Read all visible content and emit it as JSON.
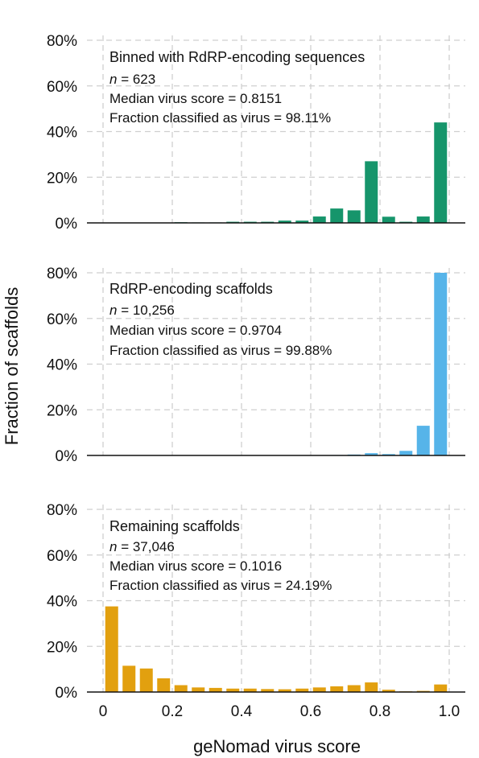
{
  "y_axis_label": "Fraction of scaffolds",
  "x_axis_label": "geNomad virus score",
  "x_tick_labels": [
    "0",
    "0.2",
    "0.4",
    "0.6",
    "0.8",
    "1.0"
  ],
  "y_tick_labels": [
    "0%",
    "20%",
    "40%",
    "60%",
    "80%"
  ],
  "colors": {
    "panel_1": "#16956b",
    "panel_2": "#56b4e9",
    "panel_3": "#e2a00f",
    "grid": "#cfcfcf",
    "axis": "#111111"
  },
  "panels": [
    {
      "title": "Binned with RdRP-encoding sequences",
      "n_prefix": "n",
      "n_value": " = 623",
      "median_text": "Median virus score = 0.8151",
      "fraction_text": "Fraction classified as virus = 98.11%"
    },
    {
      "title": "RdRP-encoding scaffolds",
      "n_prefix": "n",
      "n_value": " = 10,256",
      "median_text": "Median virus score = 0.9704",
      "fraction_text": "Fraction classified as virus = 99.88%"
    },
    {
      "title": "Remaining scaffolds",
      "n_prefix": "n",
      "n_value": " = 37,046",
      "median_text": "Median virus score = 0.1016",
      "fraction_text": "Fraction classified as virus = 24.19%"
    }
  ],
  "chart_data": [
    {
      "type": "bar",
      "title": "Binned with RdRP-encoding sequences",
      "xlabel": "geNomad virus score",
      "ylabel": "Fraction of scaffolds",
      "x": [
        0.025,
        0.075,
        0.125,
        0.175,
        0.225,
        0.275,
        0.325,
        0.375,
        0.425,
        0.475,
        0.525,
        0.575,
        0.625,
        0.675,
        0.725,
        0.775,
        0.825,
        0.875,
        0.925,
        0.975
      ],
      "values": [
        0,
        0,
        0,
        0,
        0.3,
        0.2,
        0.2,
        0.5,
        0.5,
        0.5,
        1.0,
        1.0,
        2.8,
        6.3,
        5.5,
        27.0,
        2.7,
        0.5,
        2.8,
        44.0
      ],
      "xlim": [
        0,
        1.0
      ],
      "ylim": [
        0,
        80
      ],
      "y_unit": "%",
      "grid": true
    },
    {
      "type": "bar",
      "title": "RdRP-encoding scaffolds",
      "xlabel": "geNomad virus score",
      "ylabel": "Fraction of scaffolds",
      "x": [
        0.025,
        0.075,
        0.125,
        0.175,
        0.225,
        0.275,
        0.325,
        0.375,
        0.425,
        0.475,
        0.525,
        0.575,
        0.625,
        0.675,
        0.725,
        0.775,
        0.825,
        0.875,
        0.925,
        0.975
      ],
      "values": [
        0,
        0,
        0,
        0,
        0,
        0,
        0,
        0,
        0,
        0,
        0,
        0,
        0,
        0.2,
        0.4,
        1.0,
        0.6,
        2.0,
        13.0,
        80.0
      ],
      "xlim": [
        0,
        1.0
      ],
      "ylim": [
        0,
        80
      ],
      "y_unit": "%",
      "grid": true
    },
    {
      "type": "bar",
      "title": "Remaining scaffolds",
      "xlabel": "geNomad virus score",
      "ylabel": "Fraction of scaffolds",
      "x": [
        0.025,
        0.075,
        0.125,
        0.175,
        0.225,
        0.275,
        0.325,
        0.375,
        0.425,
        0.475,
        0.525,
        0.575,
        0.625,
        0.675,
        0.725,
        0.775,
        0.825,
        0.875,
        0.925,
        0.975
      ],
      "values": [
        37.5,
        11.5,
        10.3,
        6.0,
        3.0,
        2.0,
        1.8,
        1.5,
        1.5,
        1.3,
        1.2,
        1.5,
        2.0,
        2.5,
        3.0,
        4.2,
        1.0,
        0.3,
        0.5,
        3.3
      ],
      "xlim": [
        0,
        1.0
      ],
      "ylim": [
        0,
        80
      ],
      "y_unit": "%",
      "grid": true
    }
  ]
}
